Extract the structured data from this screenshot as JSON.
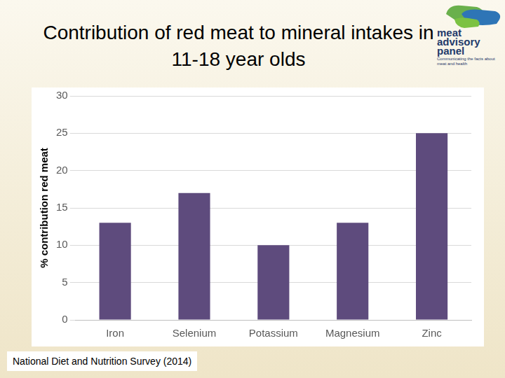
{
  "chart_data": {
    "type": "bar",
    "title": "Contribution of red meat to mineral intakes in 11-18 year olds",
    "y_label": "% contribution red meat",
    "categories": [
      "Iron",
      "Selenium",
      "Potassium",
      "Magnesium",
      "Zinc"
    ],
    "values": [
      13,
      17,
      10,
      13,
      25
    ],
    "color": "#5e4b7d",
    "ylim": [
      0,
      30
    ],
    "yticks": [
      0,
      5,
      10,
      15,
      20,
      25,
      30
    ],
    "grid": true,
    "annotations": [
      "National Diet and Nutrition Survey (2014)"
    ]
  },
  "logo": {
    "words": [
      "meat",
      "advisory",
      "panel"
    ],
    "tagline": "Communicating the facts about meat and health"
  }
}
